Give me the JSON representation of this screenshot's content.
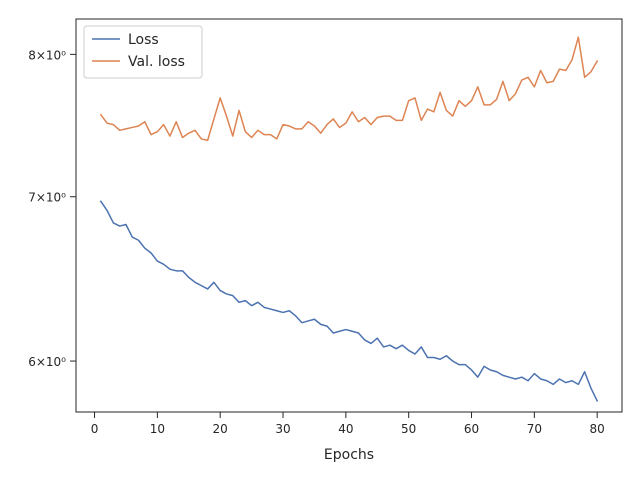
{
  "chart_data": {
    "type": "line",
    "title": "",
    "xlabel": "Epochs",
    "ylabel": "",
    "y_scale": "log",
    "xlim": [
      -2.95,
      83.95
    ],
    "ylim": [
      5.72,
      8.27
    ],
    "x_ticks": [
      0,
      10,
      20,
      30,
      40,
      50,
      60,
      70,
      80
    ],
    "y_ticks": [
      {
        "value": 6,
        "label": "6×10⁰"
      },
      {
        "value": 7,
        "label": "7×10⁰"
      },
      {
        "value": 8,
        "label": "8×10⁰"
      }
    ],
    "grid": false,
    "legend_position": "top-left",
    "x": [
      1,
      2,
      3,
      4,
      5,
      6,
      7,
      8,
      9,
      10,
      11,
      12,
      13,
      14,
      15,
      16,
      17,
      18,
      19,
      20,
      21,
      22,
      23,
      24,
      25,
      26,
      27,
      28,
      29,
      30,
      31,
      32,
      33,
      34,
      35,
      36,
      37,
      38,
      39,
      40,
      41,
      42,
      43,
      44,
      45,
      46,
      47,
      48,
      49,
      50,
      51,
      52,
      53,
      54,
      55,
      56,
      57,
      58,
      59,
      60,
      61,
      62,
      63,
      64,
      65,
      66,
      67,
      68,
      69,
      70,
      71,
      72,
      73,
      74,
      75,
      76,
      77,
      78,
      79,
      80
    ],
    "series": [
      {
        "name": "Loss",
        "color": "#4c72b0",
        "values": [
          6.97,
          6.91,
          6.83,
          6.81,
          6.82,
          6.74,
          6.72,
          6.67,
          6.64,
          6.59,
          6.57,
          6.54,
          6.53,
          6.53,
          6.49,
          6.46,
          6.44,
          6.42,
          6.46,
          6.41,
          6.39,
          6.38,
          6.34,
          6.35,
          6.32,
          6.34,
          6.31,
          6.3,
          6.29,
          6.28,
          6.29,
          6.26,
          6.22,
          6.23,
          6.24,
          6.21,
          6.2,
          6.16,
          6.17,
          6.18,
          6.17,
          6.16,
          6.12,
          6.1,
          6.13,
          6.08,
          6.09,
          6.07,
          6.09,
          6.06,
          6.04,
          6.08,
          6.02,
          6.02,
          6.01,
          6.03,
          6.0,
          5.98,
          5.98,
          5.95,
          5.91,
          5.97,
          5.95,
          5.94,
          5.92,
          5.91,
          5.9,
          5.91,
          5.89,
          5.93,
          5.9,
          5.89,
          5.87,
          5.9,
          5.88,
          5.89,
          5.87,
          5.94,
          5.85,
          5.78
        ]
      },
      {
        "name": "Val. loss",
        "color": "#dd8452",
        "values": [
          7.56,
          7.5,
          7.49,
          7.45,
          7.46,
          7.47,
          7.48,
          7.51,
          7.42,
          7.44,
          7.49,
          7.41,
          7.51,
          7.4,
          7.43,
          7.45,
          7.39,
          7.38,
          7.53,
          7.68,
          7.55,
          7.41,
          7.59,
          7.44,
          7.4,
          7.45,
          7.42,
          7.42,
          7.39,
          7.49,
          7.48,
          7.46,
          7.46,
          7.51,
          7.48,
          7.43,
          7.49,
          7.53,
          7.47,
          7.5,
          7.58,
          7.51,
          7.54,
          7.49,
          7.54,
          7.55,
          7.55,
          7.52,
          7.52,
          7.66,
          7.68,
          7.52,
          7.6,
          7.58,
          7.72,
          7.59,
          7.55,
          7.66,
          7.62,
          7.66,
          7.76,
          7.63,
          7.63,
          7.67,
          7.8,
          7.66,
          7.71,
          7.81,
          7.83,
          7.76,
          7.88,
          7.79,
          7.8,
          7.89,
          7.88,
          7.96,
          8.13,
          7.83,
          7.87,
          7.95
        ]
      }
    ]
  }
}
